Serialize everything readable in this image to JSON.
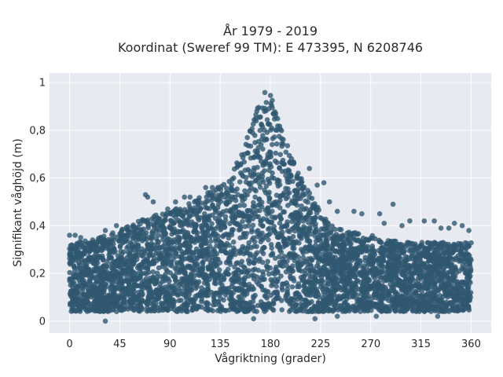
{
  "chart_data": {
    "type": "scatter",
    "title_line1": "År 1979 - 2019",
    "title_line2": "Koordinat (Sweref 99 TM): E 473395, N 6208746",
    "xlabel": "Vågriktning (grader)",
    "ylabel": "Signifikant våghöjd (m)",
    "xlim": [
      -18,
      378
    ],
    "ylim": [
      -0.05,
      1.04
    ],
    "xticks": [
      0,
      45,
      90,
      135,
      180,
      225,
      270,
      315,
      360
    ],
    "xtick_labels": [
      "0",
      "45",
      "90",
      "135",
      "180",
      "225",
      "270",
      "315",
      "360"
    ],
    "yticks": [
      0,
      0.2,
      0.4,
      0.6,
      0.8,
      1
    ],
    "ytick_labels": [
      "0",
      "0,2",
      "0,4",
      "0,6",
      "0,8",
      "1"
    ],
    "grid": true,
    "marker_color": "#2f5870",
    "plot_background": "#e8eaf2",
    "envelope": {
      "x": [
        0,
        20,
        45,
        70,
        90,
        110,
        130,
        145,
        155,
        165,
        172,
        177,
        180,
        185,
        195,
        210,
        225,
        235,
        250,
        270,
        300,
        330,
        360
      ],
      "y_max": [
        0.33,
        0.34,
        0.38,
        0.44,
        0.46,
        0.5,
        0.56,
        0.62,
        0.72,
        0.85,
        0.95,
        0.99,
        0.96,
        0.88,
        0.74,
        0.58,
        0.46,
        0.4,
        0.38,
        0.36,
        0.33,
        0.33,
        0.33
      ],
      "y_min": 0.04
    },
    "outliers": [
      {
        "x": 0,
        "y": 0.36
      },
      {
        "x": 5,
        "y": 0.36
      },
      {
        "x": 10,
        "y": 0.35
      },
      {
        "x": 32,
        "y": 0.38
      },
      {
        "x": 42,
        "y": 0.4
      },
      {
        "x": 68,
        "y": 0.53
      },
      {
        "x": 70,
        "y": 0.52
      },
      {
        "x": 75,
        "y": 0.5
      },
      {
        "x": 88,
        "y": 0.47
      },
      {
        "x": 95,
        "y": 0.5
      },
      {
        "x": 103,
        "y": 0.52
      },
      {
        "x": 108,
        "y": 0.52
      },
      {
        "x": 112,
        "y": 0.5
      },
      {
        "x": 115,
        "y": 0.49
      },
      {
        "x": 122,
        "y": 0.56
      },
      {
        "x": 128,
        "y": 0.56
      },
      {
        "x": 133,
        "y": 0.56
      },
      {
        "x": 215,
        "y": 0.64
      },
      {
        "x": 222,
        "y": 0.57
      },
      {
        "x": 228,
        "y": 0.58
      },
      {
        "x": 233,
        "y": 0.5
      },
      {
        "x": 240,
        "y": 0.46
      },
      {
        "x": 255,
        "y": 0.46
      },
      {
        "x": 262,
        "y": 0.45
      },
      {
        "x": 278,
        "y": 0.45
      },
      {
        "x": 282,
        "y": 0.41
      },
      {
        "x": 290,
        "y": 0.49
      },
      {
        "x": 298,
        "y": 0.4
      },
      {
        "x": 305,
        "y": 0.42
      },
      {
        "x": 318,
        "y": 0.42
      },
      {
        "x": 327,
        "y": 0.42
      },
      {
        "x": 333,
        "y": 0.39
      },
      {
        "x": 340,
        "y": 0.39
      },
      {
        "x": 345,
        "y": 0.41
      },
      {
        "x": 352,
        "y": 0.4
      },
      {
        "x": 358,
        "y": 0.38
      },
      {
        "x": 32,
        "y": 0.0
      },
      {
        "x": 165,
        "y": 0.01
      },
      {
        "x": 220,
        "y": 0.01
      },
      {
        "x": 240,
        "y": 0.02
      },
      {
        "x": 275,
        "y": 0.02
      },
      {
        "x": 330,
        "y": 0.02
      }
    ]
  }
}
